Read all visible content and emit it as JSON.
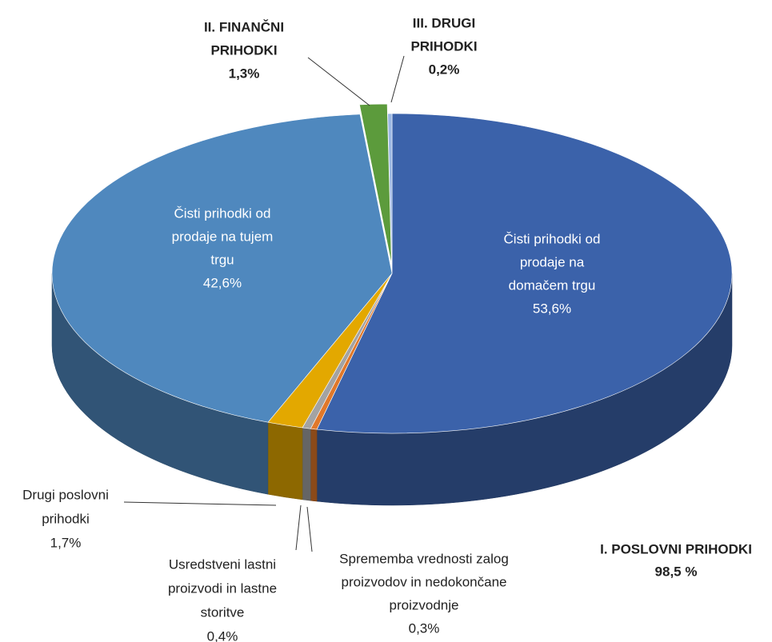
{
  "chart_data": {
    "type": "pie3d",
    "categories": [
      [
        "Čisti prihodki od",
        "prodaje na",
        "domačem trgu"
      ],
      [
        "Sprememba vrednosti zalog",
        "proizvodov in nedokončane",
        "proizvodnje"
      ],
      [
        "Usredstveni lastni",
        "proizvodi in lastne",
        "storitve"
      ],
      [
        "Drugi poslovni",
        "prihodki"
      ],
      [
        "Čisti prihodki od",
        "prodaje na tujem",
        "trgu"
      ],
      [
        "II. FINANČNI",
        "PRIHODKI"
      ],
      [
        "III. DRUGI",
        "PRIHODKI"
      ]
    ],
    "values": [
      53.6,
      0.3,
      0.4,
      1.7,
      42.6,
      1.3,
      0.2
    ],
    "value_labels": [
      "53,6%",
      "0,3%",
      "0,4%",
      "1,7%",
      "42,6%",
      "1,3%",
      "0,2%"
    ],
    "colors": [
      "#3b62aa",
      "#e0782a",
      "#a3a3a3",
      "#e3a800",
      "#4f88be",
      "#5c9b3c",
      "#9bb7e3"
    ],
    "annotation": [
      "I. POSLOVNI PRIHODKI",
      "98,5 %"
    ]
  }
}
